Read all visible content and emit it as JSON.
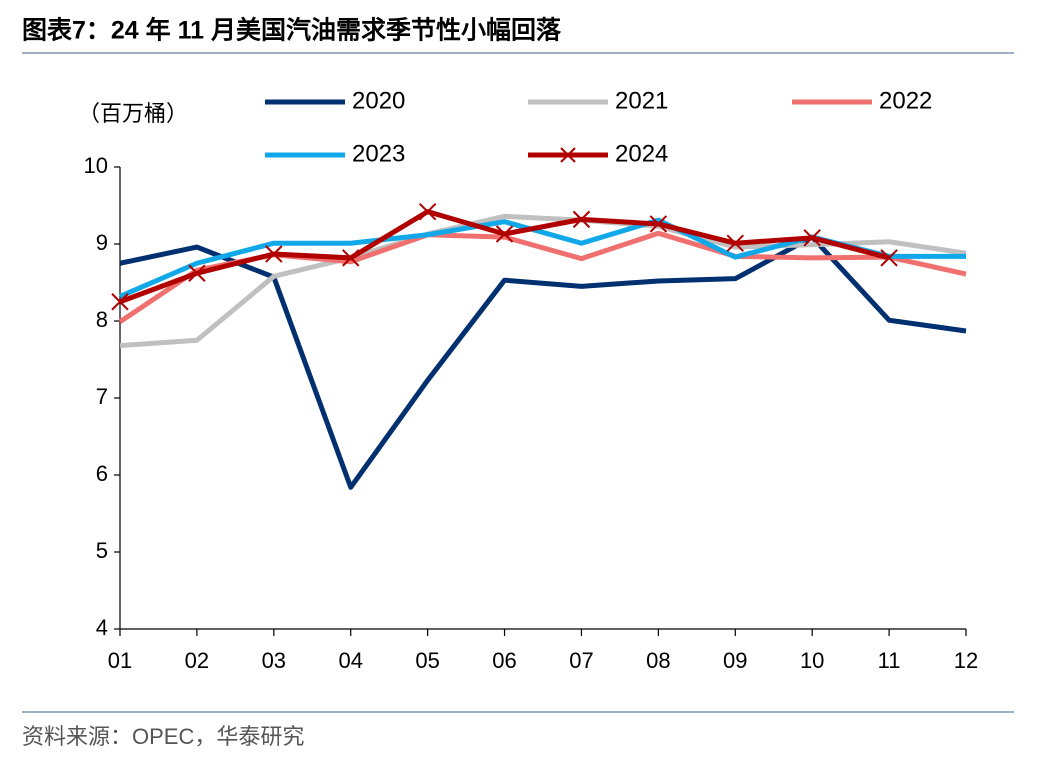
{
  "chart_data": {
    "type": "line",
    "title": "图表7：24 年 11 月美国汽油需求季节性小幅回落",
    "y_label": "（百万桶）",
    "source": "资料来源：OPEC，华泰研究",
    "categories": [
      "01",
      "02",
      "03",
      "04",
      "05",
      "06",
      "07",
      "08",
      "09",
      "10",
      "11",
      "12"
    ],
    "ylim": [
      4,
      10
    ],
    "yticks": [
      4,
      5,
      6,
      7,
      8,
      9,
      10
    ],
    "grid": false,
    "legend": "top",
    "series": [
      {
        "name": "2020",
        "color": "#003070",
        "values": [
          8.75,
          8.96,
          8.57,
          5.84,
          7.23,
          8.53,
          8.45,
          8.52,
          8.55,
          9.09,
          8.01,
          7.87
        ]
      },
      {
        "name": "2021",
        "color": "#c0c0c0",
        "values": [
          7.68,
          7.75,
          8.58,
          8.82,
          9.13,
          9.36,
          9.31,
          9.23,
          8.96,
          8.99,
          9.03,
          8.88
        ]
      },
      {
        "name": "2022",
        "color": "#f07070",
        "values": [
          7.99,
          8.66,
          8.86,
          8.77,
          9.12,
          9.09,
          8.81,
          9.14,
          8.84,
          8.82,
          8.83,
          8.61
        ]
      },
      {
        "name": "2023",
        "color": "#10a8e8",
        "values": [
          8.32,
          8.75,
          9.01,
          9.01,
          9.12,
          9.29,
          9.01,
          9.31,
          8.83,
          9.09,
          8.84,
          8.84
        ]
      },
      {
        "name": "2024",
        "color": "#b00000",
        "marker": "x",
        "values": [
          8.25,
          8.62,
          8.87,
          8.82,
          9.42,
          9.13,
          9.32,
          9.26,
          9.01,
          9.08,
          8.82,
          null
        ]
      }
    ]
  }
}
